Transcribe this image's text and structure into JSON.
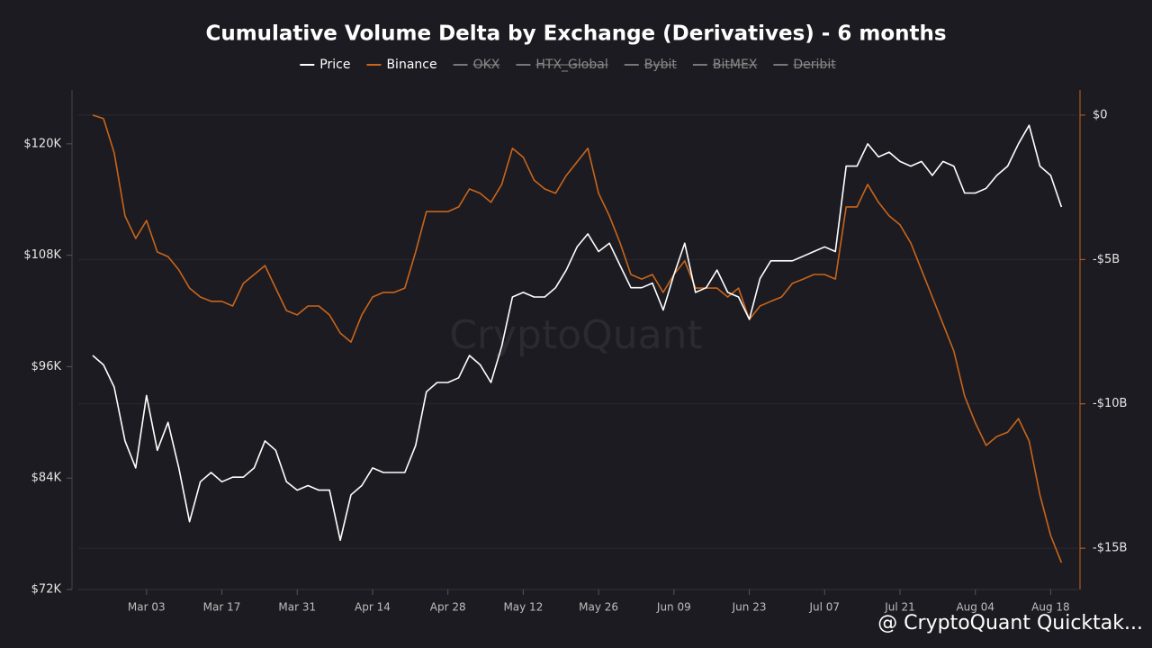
{
  "chart_data": {
    "type": "line",
    "title": "Cumulative Volume Delta by Exchange (Derivatives) - 6 months",
    "watermark": "CryptoQuant",
    "footer": "@ CryptoQuant Quicktak...",
    "categories": [
      null,
      null,
      null,
      null,
      null,
      "Mar 03",
      null,
      null,
      null,
      null,
      null,
      null,
      "Mar 17",
      null,
      null,
      null,
      null,
      null,
      null,
      "Mar 31",
      null,
      null,
      null,
      null,
      null,
      null,
      "Apr 14",
      null,
      null,
      null,
      null,
      null,
      null,
      "Apr 28",
      null,
      null,
      null,
      null,
      null,
      null,
      "May 12",
      null,
      null,
      null,
      null,
      null,
      null,
      "May 26",
      null,
      null,
      null,
      null,
      null,
      null,
      "Jun 09",
      null,
      null,
      null,
      null,
      null,
      null,
      "Jun 23",
      null,
      null,
      null,
      null,
      null,
      null,
      "Jul 07",
      null,
      null,
      null,
      null,
      null,
      null,
      "Jul 21",
      null,
      null,
      null,
      null,
      null,
      null,
      "Aug 04",
      null,
      null,
      null,
      null,
      null,
      null,
      "Aug 18",
      null
    ],
    "series": [
      {
        "name": "Price",
        "color": "#ffffff",
        "axis": "y",
        "values": [
          97200,
          96200,
          93800,
          88000,
          85100,
          92900,
          87000,
          90000,
          85100,
          79300,
          83600,
          84600,
          83600,
          84100,
          84100,
          85100,
          88000,
          87000,
          83600,
          82700,
          83200,
          82700,
          82700,
          77300,
          82200,
          83200,
          85100,
          84600,
          84600,
          84600,
          87500,
          93300,
          94300,
          94300,
          94800,
          97200,
          96200,
          94300,
          98200,
          103500,
          104000,
          103500,
          103500,
          104500,
          106400,
          108900,
          110300,
          108400,
          109300,
          106900,
          104500,
          104500,
          105000,
          102100,
          105900,
          109300,
          104000,
          104500,
          106400,
          104000,
          103500,
          101100,
          105500,
          107400,
          107400,
          107400,
          107900,
          108400,
          108900,
          108400,
          117600,
          117600,
          120000,
          118600,
          119100,
          118100,
          117600,
          118100,
          116600,
          118100,
          117600,
          114700,
          114700,
          115200,
          116600,
          117600,
          120000,
          122000,
          117600,
          116600,
          113200
        ]
      },
      {
        "name": "Binance",
        "color": "#c8651b",
        "axis": "y2",
        "values": [
          0,
          -120000000.0,
          -1310000000.0,
          -3490000000.0,
          -4270000000.0,
          -3650000000.0,
          -4740000000.0,
          -4900000000.0,
          -5360000000.0,
          -5990000000.0,
          -6300000000.0,
          -6450000000.0,
          -6450000000.0,
          -6610000000.0,
          -5830000000.0,
          -5520000000.0,
          -5210000000.0,
          -5990000000.0,
          -6770000000.0,
          -6920000000.0,
          -6610000000.0,
          -6610000000.0,
          -6920000000.0,
          -7550000000.0,
          -7860000000.0,
          -6920000000.0,
          -6300000000.0,
          -6140000000.0,
          -6140000000.0,
          -5990000000.0,
          -4740000000.0,
          -3340000000.0,
          -3340000000.0,
          -3340000000.0,
          -3180000000.0,
          -2560000000.0,
          -2710000000.0,
          -3020000000.0,
          -2400000000.0,
          -1150000000.0,
          -1460000000.0,
          -2250000000.0,
          -2560000000.0,
          -2710000000.0,
          -2090000000.0,
          -1620000000.0,
          -1150000000.0,
          -2710000000.0,
          -3490000000.0,
          -4430000000.0,
          -5520000000.0,
          -5680000000.0,
          -5520000000.0,
          -6140000000.0,
          -5520000000.0,
          -5050000000.0,
          -5990000000.0,
          -5990000000.0,
          -5990000000.0,
          -6300000000.0,
          -5990000000.0,
          -7080000000.0,
          -6610000000.0,
          -6450000000.0,
          -6300000000.0,
          -5830000000.0,
          -5680000000.0,
          -5520000000.0,
          -5520000000.0,
          -5680000000.0,
          -3180000000.0,
          -3180000000.0,
          -2400000000.0,
          -3020000000.0,
          -3490000000.0,
          -3800000000.0,
          -4430000000.0,
          -5360000000.0,
          -6300000000.0,
          -7230000000.0,
          -8170000000.0,
          -9730000000.0,
          -10660000000.0,
          -11440000000.0,
          -11130000000.0,
          -10980000000.0,
          -10510000000.0,
          -11290000000.0,
          -13160000000.0,
          -14560000000.0,
          -15500000000.0
        ]
      }
    ],
    "hidden_series": [
      "OKX",
      "HTX_Global",
      "Bybit",
      "BitMEX",
      "Deribit"
    ],
    "ylim": [
      72000,
      125800
    ],
    "yticks": [
      {
        "value": 72000,
        "label": "$72K"
      },
      {
        "value": 84000,
        "label": "$84K"
      },
      {
        "value": 96000,
        "label": "$96K"
      },
      {
        "value": 108000,
        "label": "$108K"
      },
      {
        "value": 120000,
        "label": "$120K"
      }
    ],
    "y2lim": [
      -16430000000,
      870000000
    ],
    "y2ticks": [
      {
        "value": 0,
        "label": "$0"
      },
      {
        "value": -5000000000,
        "label": "-$5B"
      },
      {
        "value": -10000000000,
        "label": "-$10B"
      },
      {
        "value": -15000000000,
        "label": "-$15B"
      }
    ],
    "grid": true,
    "legend": "top"
  }
}
